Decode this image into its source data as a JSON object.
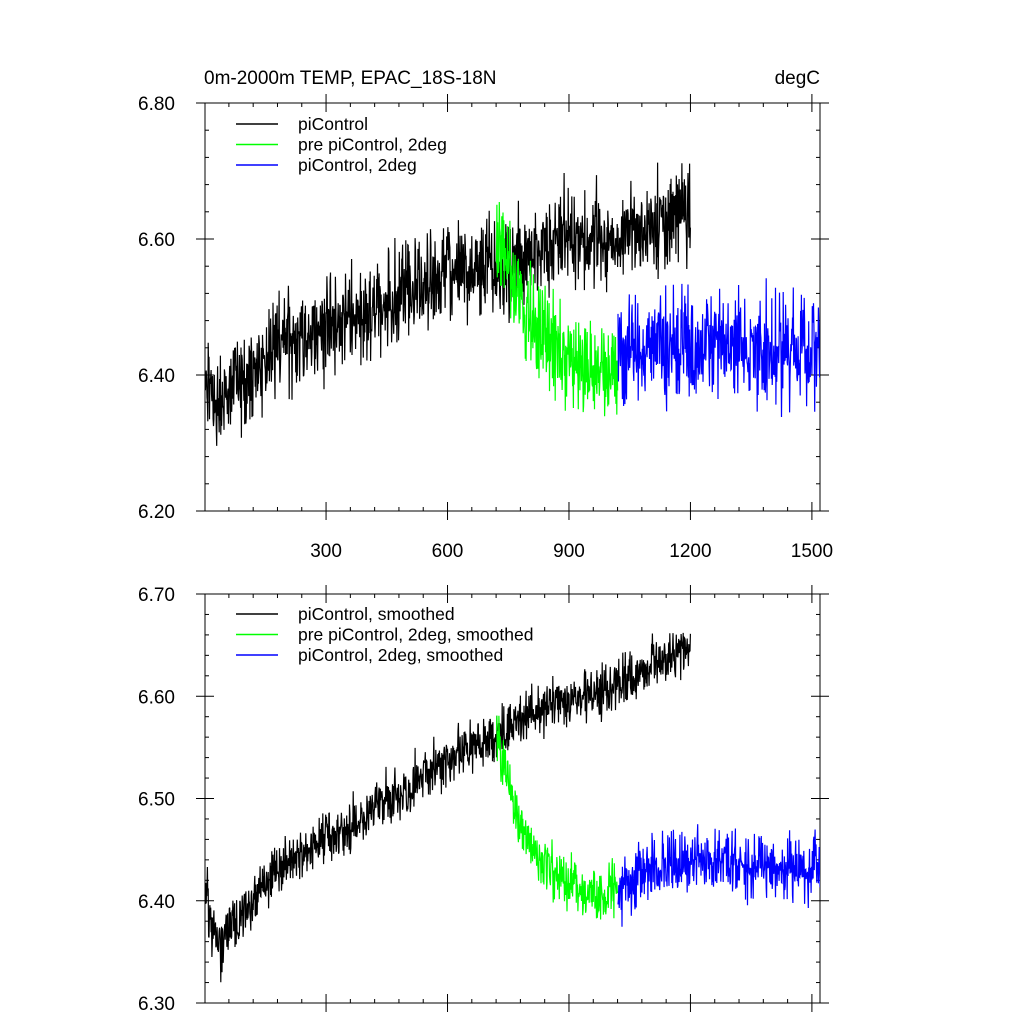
{
  "colors": {
    "black": "#000000",
    "green": "#00ff00",
    "blue": "#0000ff"
  },
  "chart_data": [
    {
      "type": "line",
      "title": "0m-2000m TEMP, EPAC_18S-18N",
      "units": "degC",
      "xlim": [
        1,
        1520
      ],
      "ylim": [
        6.2,
        6.8
      ],
      "xticks": [
        300,
        600,
        900,
        1200,
        1500
      ],
      "yticks": [
        6.2,
        6.4,
        6.6,
        6.8
      ],
      "yticklabels": [
        "6.20",
        "6.40",
        "6.60",
        "6.80"
      ],
      "legend_position": "top-left",
      "series": [
        {
          "name": "piControl",
          "color": "#000000",
          "x": [
            1,
            50,
            100,
            150,
            200,
            250,
            300,
            350,
            400,
            450,
            500,
            550,
            600,
            650,
            700,
            725,
            750,
            800,
            850,
            900,
            950,
            1000,
            1050,
            1100,
            1150,
            1200
          ],
          "y": [
            6.38,
            6.36,
            6.4,
            6.42,
            6.45,
            6.46,
            6.47,
            6.48,
            6.49,
            6.51,
            6.52,
            6.53,
            6.55,
            6.55,
            6.56,
            6.56,
            6.57,
            6.58,
            6.59,
            6.6,
            6.6,
            6.6,
            6.61,
            6.62,
            6.63,
            6.64
          ],
          "spread": 0.035
        },
        {
          "name": "pre piControl, 2deg",
          "color": "#00ff00",
          "x": [
            721,
            750,
            775,
            800,
            825,
            850,
            875,
            900,
            925,
            950,
            975,
            1000,
            1020
          ],
          "y": [
            6.6,
            6.56,
            6.51,
            6.48,
            6.46,
            6.45,
            6.44,
            6.43,
            6.42,
            6.41,
            6.41,
            6.41,
            6.41
          ],
          "spread": 0.035
        },
        {
          "name": "piControl, 2deg",
          "color": "#0000ff",
          "x": [
            1021,
            1100,
            1200,
            1300,
            1400,
            1500,
            1520
          ],
          "y": [
            6.43,
            6.44,
            6.44,
            6.44,
            6.44,
            6.44,
            6.44
          ],
          "spread": 0.04
        }
      ]
    },
    {
      "type": "line",
      "xlim": [
        1,
        1520
      ],
      "ylim": [
        6.3,
        6.7
      ],
      "xticks": [
        300,
        600,
        900,
        1200,
        1500
      ],
      "yticks": [
        6.3,
        6.4,
        6.5,
        6.6,
        6.7
      ],
      "yticklabels": [
        "6.30",
        "6.40",
        "6.50",
        "6.60",
        "6.70"
      ],
      "legend_position": "top-left",
      "series": [
        {
          "name": "piControl, smoothed",
          "color": "#000000",
          "x": [
            1,
            20,
            40,
            60,
            80,
            100,
            150,
            200,
            250,
            300,
            350,
            400,
            450,
            500,
            550,
            600,
            650,
            700,
            725,
            750,
            800,
            850,
            900,
            950,
            1000,
            1050,
            1100,
            1150,
            1200
          ],
          "y": [
            6.42,
            6.37,
            6.35,
            6.38,
            6.37,
            6.39,
            6.42,
            6.44,
            6.45,
            6.46,
            6.47,
            6.48,
            6.5,
            6.51,
            6.53,
            6.54,
            6.55,
            6.55,
            6.56,
            6.57,
            6.58,
            6.59,
            6.6,
            6.6,
            6.61,
            6.62,
            6.63,
            6.64,
            6.65
          ],
          "spread": 0.012
        },
        {
          "name": "pre piControl, 2deg, smoothed",
          "color": "#00ff00",
          "x": [
            721,
            750,
            775,
            800,
            825,
            850,
            875,
            900,
            925,
            950,
            975,
            1000,
            1020
          ],
          "y": [
            6.56,
            6.52,
            6.48,
            6.46,
            6.44,
            6.43,
            6.42,
            6.42,
            6.41,
            6.41,
            6.4,
            6.41,
            6.41
          ],
          "spread": 0.012
        },
        {
          "name": "piControl, 2deg, smoothed",
          "color": "#0000ff",
          "x": [
            1021,
            1100,
            1200,
            1300,
            1400,
            1500,
            1520
          ],
          "y": [
            6.41,
            6.43,
            6.44,
            6.44,
            6.43,
            6.43,
            6.44
          ],
          "spread": 0.015
        }
      ]
    }
  ]
}
